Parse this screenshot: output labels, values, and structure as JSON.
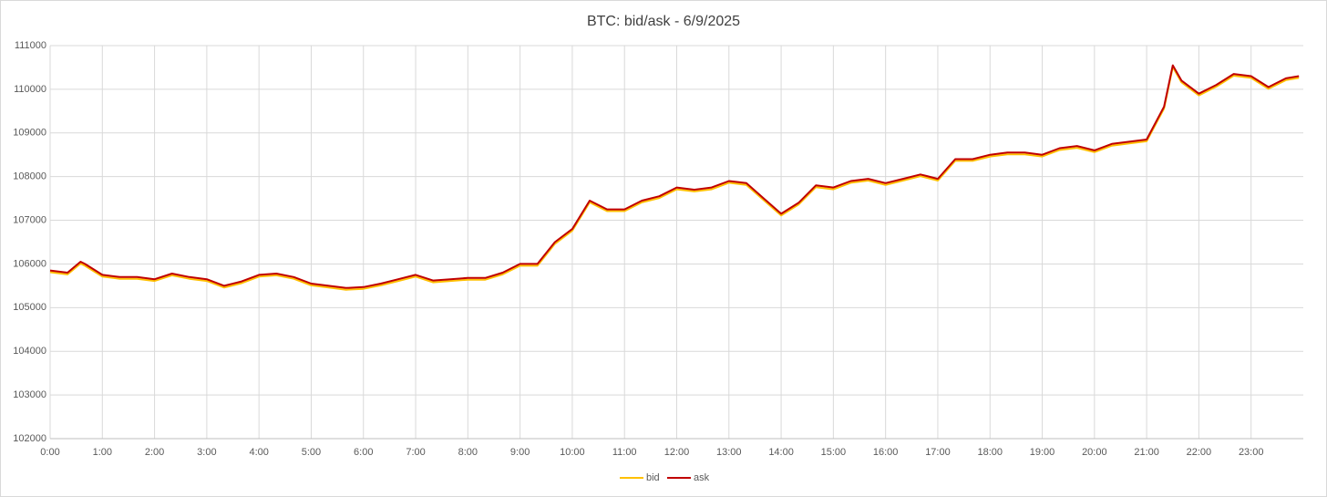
{
  "chart_data": {
    "type": "line",
    "title": "BTC: bid/ask - 6/9/2025",
    "x": [
      0,
      20,
      35,
      40,
      60,
      80,
      100,
      120,
      140,
      160,
      180,
      200,
      220,
      240,
      260,
      280,
      300,
      320,
      340,
      360,
      380,
      400,
      420,
      440,
      460,
      480,
      500,
      520,
      540,
      560,
      580,
      600,
      620,
      640,
      660,
      680,
      700,
      720,
      740,
      760,
      780,
      800,
      820,
      840,
      860,
      880,
      900,
      920,
      940,
      960,
      980,
      1000,
      1020,
      1040,
      1060,
      1080,
      1100,
      1120,
      1140,
      1160,
      1180,
      1200,
      1220,
      1240,
      1260,
      1280,
      1290,
      1300,
      1320,
      1340,
      1360,
      1380,
      1400,
      1420,
      1435
    ],
    "series": [
      {
        "name": "bid",
        "color": "#ffc000",
        "values": [
          105810,
          105760,
          106010,
          105960,
          105710,
          105660,
          105660,
          105610,
          105740,
          105660,
          105610,
          105460,
          105560,
          105710,
          105740,
          105660,
          105510,
          105460,
          105410,
          105430,
          105510,
          105610,
          105710,
          105580,
          105610,
          105640,
          105640,
          105760,
          105960,
          105960,
          106460,
          106760,
          107410,
          107210,
          107210,
          107410,
          107510,
          107710,
          107660,
          107710,
          107860,
          107810,
          107460,
          107110,
          107360,
          107760,
          107710,
          107860,
          107910,
          107810,
          107910,
          108010,
          107910,
          108360,
          108360,
          108460,
          108510,
          108510,
          108460,
          108610,
          108660,
          108560,
          108710,
          108760,
          108810,
          109560,
          110510,
          110160,
          109860,
          110060,
          110310,
          110260,
          110010,
          110210,
          110260
        ]
      },
      {
        "name": "ask",
        "color": "#c00000",
        "values": [
          105850,
          105800,
          106050,
          106000,
          105750,
          105700,
          105700,
          105650,
          105780,
          105700,
          105650,
          105500,
          105600,
          105750,
          105780,
          105700,
          105550,
          105500,
          105450,
          105470,
          105550,
          105650,
          105750,
          105620,
          105650,
          105680,
          105680,
          105800,
          106000,
          106000,
          106500,
          106800,
          107450,
          107250,
          107250,
          107450,
          107550,
          107750,
          107700,
          107750,
          107900,
          107850,
          107500,
          107150,
          107400,
          107800,
          107750,
          107900,
          107950,
          107850,
          107950,
          108050,
          107950,
          108400,
          108400,
          108500,
          108550,
          108550,
          108500,
          108650,
          108700,
          108600,
          108750,
          108800,
          108850,
          109600,
          110550,
          110200,
          109900,
          110100,
          110350,
          110300,
          110050,
          110250,
          110300
        ]
      }
    ],
    "xlim": [
      0,
      1440
    ],
    "xticks": [
      {
        "value": 0,
        "label": "0:00"
      },
      {
        "value": 60,
        "label": "1:00"
      },
      {
        "value": 120,
        "label": "2:00"
      },
      {
        "value": 180,
        "label": "3:00"
      },
      {
        "value": 240,
        "label": "4:00"
      },
      {
        "value": 300,
        "label": "5:00"
      },
      {
        "value": 360,
        "label": "6:00"
      },
      {
        "value": 420,
        "label": "7:00"
      },
      {
        "value": 480,
        "label": "8:00"
      },
      {
        "value": 540,
        "label": "9:00"
      },
      {
        "value": 600,
        "label": "10:00"
      },
      {
        "value": 660,
        "label": "11:00"
      },
      {
        "value": 720,
        "label": "12:00"
      },
      {
        "value": 780,
        "label": "13:00"
      },
      {
        "value": 840,
        "label": "14:00"
      },
      {
        "value": 900,
        "label": "15:00"
      },
      {
        "value": 960,
        "label": "16:00"
      },
      {
        "value": 1020,
        "label": "17:00"
      },
      {
        "value": 1080,
        "label": "18:00"
      },
      {
        "value": 1140,
        "label": "19:00"
      },
      {
        "value": 1200,
        "label": "20:00"
      },
      {
        "value": 1260,
        "label": "21:00"
      },
      {
        "value": 1320,
        "label": "22:00"
      },
      {
        "value": 1380,
        "label": "23:00"
      }
    ],
    "ylim": [
      102000,
      111000
    ],
    "yticks": [
      102000,
      103000,
      104000,
      105000,
      106000,
      107000,
      108000,
      109000,
      110000,
      111000
    ],
    "grid": true,
    "legend": "bottom"
  }
}
